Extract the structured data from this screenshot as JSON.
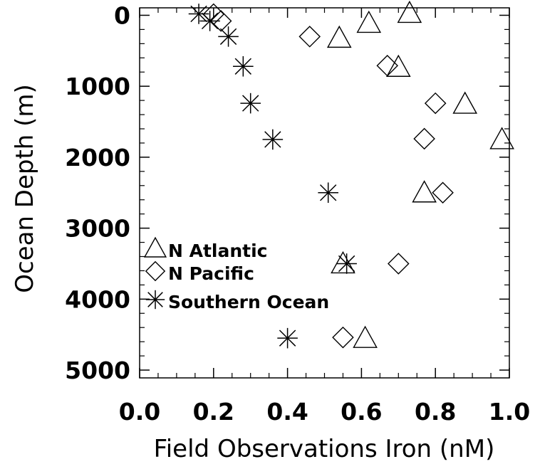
{
  "chart_data": {
    "type": "scatter",
    "xlabel": "Field Observations Iron (nM)",
    "ylabel": "Ocean Depth (m)",
    "xlim": [
      0.0,
      1.0
    ],
    "ylim": [
      5000,
      0
    ],
    "y_reversed": true,
    "x_ticks": [
      "0.0",
      "0.2",
      "0.4",
      "0.6",
      "0.8",
      "1.0"
    ],
    "y_ticks": [
      "0",
      "1000",
      "2000",
      "3000",
      "4000",
      "5000"
    ],
    "grid": false,
    "legend_position": "lower-left",
    "series": [
      {
        "name": "N Atlantic",
        "marker": "triangle",
        "points": [
          {
            "x": 0.73,
            "y": -30
          },
          {
            "x": 0.62,
            "y": 110
          },
          {
            "x": 0.54,
            "y": 320
          },
          {
            "x": 0.7,
            "y": 730
          },
          {
            "x": 0.88,
            "y": 1250
          },
          {
            "x": 0.98,
            "y": 1750
          },
          {
            "x": 0.77,
            "y": 2500
          },
          {
            "x": 0.55,
            "y": 3500
          },
          {
            "x": 0.61,
            "y": 4550
          }
        ]
      },
      {
        "name": "N Pacific",
        "marker": "diamond",
        "points": [
          {
            "x": 0.2,
            "y": -15
          },
          {
            "x": 0.22,
            "y": 80
          },
          {
            "x": 0.46,
            "y": 300
          },
          {
            "x": 0.67,
            "y": 710
          },
          {
            "x": 0.8,
            "y": 1240
          },
          {
            "x": 0.77,
            "y": 1740
          },
          {
            "x": 0.82,
            "y": 2500
          },
          {
            "x": 0.7,
            "y": 3500
          },
          {
            "x": 0.55,
            "y": 4540
          }
        ]
      },
      {
        "name": "Southern Ocean",
        "marker": "asterisk",
        "points": [
          {
            "x": 0.16,
            "y": -20
          },
          {
            "x": 0.19,
            "y": 80
          },
          {
            "x": 0.24,
            "y": 300
          },
          {
            "x": 0.28,
            "y": 720
          },
          {
            "x": 0.3,
            "y": 1240
          },
          {
            "x": 0.36,
            "y": 1750
          },
          {
            "x": 0.51,
            "y": 2500
          },
          {
            "x": 0.56,
            "y": 3500
          },
          {
            "x": 0.4,
            "y": 4550
          }
        ]
      }
    ]
  }
}
